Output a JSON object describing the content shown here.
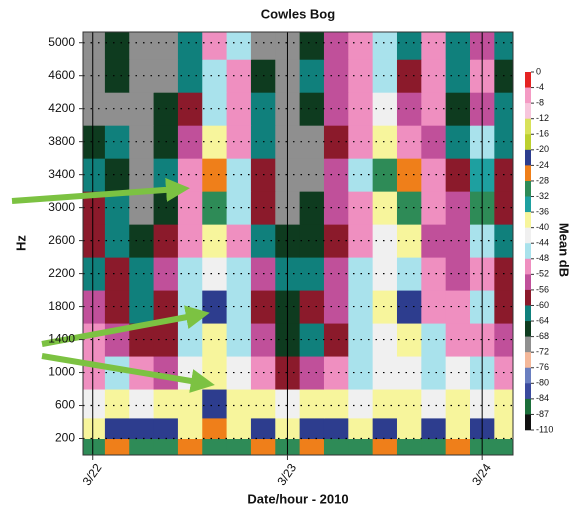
{
  "chart_data": {
    "type": "contour",
    "title": "Cowles Bog",
    "x_label": "Date/hour - 2010",
    "y_label": "Hz",
    "colorbar_label": "Mean dB",
    "xlim": [
      -1.2,
      51.8
    ],
    "xticks": [
      {
        "value": 0,
        "label": "3/22"
      },
      {
        "value": 24,
        "label": "3/23"
      },
      {
        "value": 48,
        "label": "3/24"
      }
    ],
    "ylim": [
      0,
      5130
    ],
    "yticks": [
      200,
      600,
      1000,
      1400,
      1800,
      2200,
      2600,
      3000,
      3400,
      3800,
      4200,
      4600,
      5000
    ],
    "grid": true,
    "x": [
      0,
      3,
      6,
      9,
      12,
      15,
      18,
      21,
      24,
      27,
      30,
      33,
      36,
      39,
      42,
      45,
      48,
      51
    ],
    "y": [
      100,
      300,
      600,
      1000,
      1400,
      1800,
      2200,
      2600,
      3000,
      3400,
      3800,
      4200,
      4600,
      5000
    ],
    "z": [
      [
        -30,
        -26,
        -30,
        -30,
        -26,
        -30,
        -30,
        -26,
        -30,
        -26,
        -30,
        -30,
        -26,
        -30,
        -30,
        -26,
        -30,
        -30
      ],
      [
        -38,
        -22,
        -22,
        -22,
        -38,
        -26,
        -38,
        -22,
        -38,
        -22,
        -22,
        -38,
        -22,
        -38,
        -22,
        -38,
        -22,
        -38
      ],
      [
        -42,
        -38,
        -42,
        -38,
        -38,
        -22,
        -38,
        -38,
        -42,
        -38,
        -38,
        -42,
        -38,
        -38,
        -42,
        -38,
        -42,
        -38
      ],
      [
        -50,
        -46,
        -50,
        -54,
        -42,
        -38,
        -42,
        -50,
        -58,
        -54,
        -50,
        -46,
        -42,
        -42,
        -46,
        -42,
        -46,
        -50
      ],
      [
        -50,
        -54,
        -58,
        -58,
        -46,
        -38,
        -46,
        -54,
        -66,
        -62,
        -58,
        -46,
        -42,
        -38,
        -46,
        -50,
        -50,
        -54
      ],
      [
        -54,
        -58,
        -62,
        -58,
        -46,
        -22,
        -46,
        -58,
        -66,
        -58,
        -54,
        -46,
        -38,
        -22,
        -50,
        -50,
        -46,
        -58
      ],
      [
        -62,
        -58,
        -62,
        -54,
        -46,
        -42,
        -46,
        -54,
        -62,
        -62,
        -54,
        -46,
        -42,
        -46,
        -50,
        -54,
        -50,
        -58
      ],
      [
        -58,
        -62,
        -66,
        -58,
        -50,
        -38,
        -50,
        -62,
        -66,
        -66,
        -58,
        -50,
        -42,
        -38,
        -54,
        -54,
        -46,
        -62
      ],
      [
        -58,
        -62,
        -70,
        -66,
        -50,
        -30,
        -46,
        -58,
        -70,
        -66,
        -54,
        -50,
        -38,
        -30,
        -50,
        -54,
        -30,
        -58
      ],
      [
        -62,
        -66,
        -70,
        -62,
        -50,
        -26,
        -46,
        -58,
        -70,
        -70,
        -54,
        -46,
        -30,
        -26,
        -50,
        -58,
        -34,
        -58
      ],
      [
        -66,
        -62,
        -70,
        -66,
        -54,
        -38,
        -50,
        -62,
        -70,
        -70,
        -58,
        -50,
        -38,
        -50,
        -54,
        -62,
        -46,
        -62
      ],
      [
        -70,
        -70,
        -70,
        -66,
        -58,
        -46,
        -50,
        -62,
        -70,
        -66,
        -54,
        -50,
        -42,
        -54,
        -50,
        -66,
        -54,
        -62
      ],
      [
        -70,
        -66,
        -70,
        -70,
        -62,
        -46,
        -50,
        -66,
        -70,
        -62,
        -54,
        -50,
        -46,
        -58,
        -50,
        -62,
        -50,
        -66
      ],
      [
        -70,
        -66,
        -70,
        -70,
        -62,
        -50,
        -46,
        -70,
        -70,
        -66,
        -54,
        -50,
        -46,
        -62,
        -50,
        -62,
        -54,
        -62
      ]
    ],
    "levels": [
      0,
      -4,
      -8,
      -12,
      -16,
      -20,
      -24,
      -28,
      -32,
      -36,
      -40,
      -44,
      -48,
      -52,
      -56,
      -60,
      -64,
      -68,
      -72,
      -76,
      -80,
      -84,
      -87,
      -110
    ],
    "colors": [
      "#e52322",
      "#f49bc4",
      "#f7c6dc",
      "#d8e25a",
      "#bcd02f",
      "#2d3d8e",
      "#ef7f1a",
      "#2e8b57",
      "#1ea0a0",
      "#f7f59c",
      "#f0f0f0",
      "#a9e2ec",
      "#ef8fc0",
      "#c0509a",
      "#8b1a2b",
      "#10807c",
      "#0e3b1f",
      "#8f8f8f",
      "#f4b89a",
      "#6a7fc0",
      "#3a4a9e",
      "#1c6e3a",
      "#111111"
    ]
  }
}
